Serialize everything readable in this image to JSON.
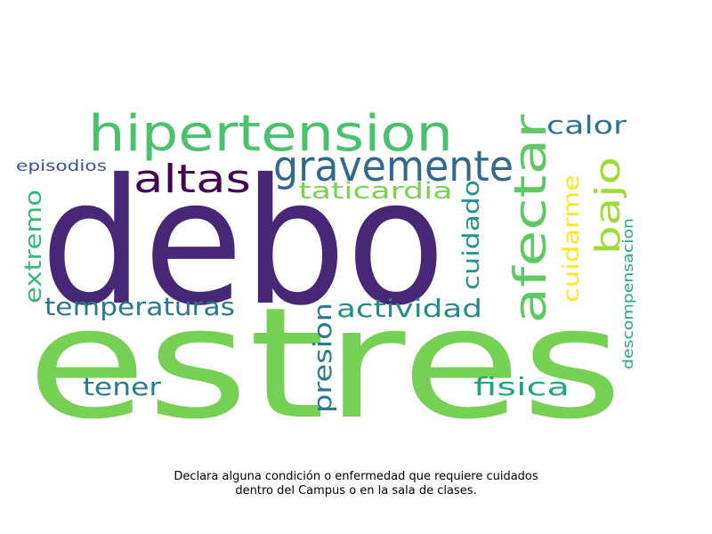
{
  "wordcloud": {
    "words": [
      {
        "text": "estres",
        "color": "#75d054"
      },
      {
        "text": "debo",
        "color": "#482777"
      },
      {
        "text": "hipertension",
        "color": "#4ac16d"
      },
      {
        "text": "gravemente",
        "color": "#31688e"
      },
      {
        "text": "afectar",
        "color": "#5ec962"
      },
      {
        "text": "altas",
        "color": "#440154"
      },
      {
        "text": "calor",
        "color": "#2c728e"
      },
      {
        "text": "bajo",
        "color": "#a0da39"
      },
      {
        "text": "taticardia",
        "color": "#7ad151"
      },
      {
        "text": "cuidado",
        "color": "#21918c"
      },
      {
        "text": "cuidarme",
        "color": "#fde725"
      },
      {
        "text": "episodios",
        "color": "#3b528b"
      },
      {
        "text": "extremo",
        "color": "#35b779"
      },
      {
        "text": "temperaturas",
        "color": "#2a788e"
      },
      {
        "text": "actividad",
        "color": "#238a8d"
      },
      {
        "text": "presion",
        "color": "#2a788e"
      },
      {
        "text": "tener",
        "color": "#287c8e"
      },
      {
        "text": "fisica",
        "color": "#20a386"
      },
      {
        "text": "descompensacion",
        "color": "#22a884"
      }
    ]
  },
  "caption": {
    "line1": "Declara alguna condición o enfermedad que requiere cuidados",
    "line2": "dentro del Campus o en la sala de clases."
  }
}
